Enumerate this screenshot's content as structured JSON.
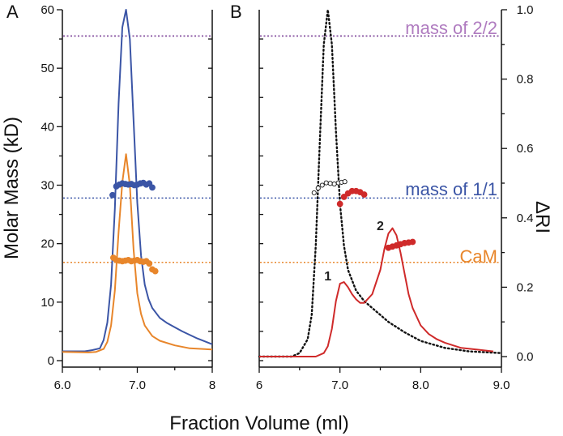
{
  "colors": {
    "blue": "#3b55a6",
    "orange": "#e8862b",
    "purple": "#7a3f96",
    "purple_text": "#b07cc0",
    "red": "#cf2a2a",
    "black": "#111111"
  },
  "figure": {
    "xlabel": "Fraction Volume (ml)"
  },
  "chart_data": [
    {
      "type": "line",
      "panel": "A",
      "panel_label": "A",
      "ylabel": "Molar Mass (kD)",
      "xlim": [
        6.0,
        8.0
      ],
      "ylim": [
        0,
        60
      ],
      "x_ticks": [
        6.0,
        6.5,
        7.0,
        7.5,
        8.0
      ],
      "x_tick_labels": [
        "6.0",
        "",
        "7.0",
        "",
        "8"
      ],
      "y_ticks": [
        0,
        5,
        10,
        15,
        20,
        25,
        30,
        35,
        40,
        45,
        50,
        55,
        60
      ],
      "y_tick_labels": [
        "0",
        "",
        "10",
        "",
        "20",
        "",
        "30",
        "",
        "40",
        "",
        "50",
        "",
        "60"
      ],
      "right_ticks": [
        0,
        5,
        10,
        15,
        20,
        25,
        30,
        35,
        40,
        45,
        50,
        55
      ],
      "reference_lines": [
        {
          "name": "mass of 2/2",
          "y": 55.5,
          "color": "purple"
        },
        {
          "name": "mass of 1/1",
          "y": 27.8,
          "color": "blue"
        },
        {
          "name": "CaM",
          "y": 16.8,
          "color": "orange"
        }
      ],
      "series": [
        {
          "name": "blue RI trace",
          "color": "blue",
          "x": [
            6.0,
            6.3,
            6.4,
            6.5,
            6.55,
            6.6,
            6.65,
            6.7,
            6.75,
            6.8,
            6.85,
            6.9,
            6.95,
            7.0,
            7.05,
            7.1,
            7.15,
            7.2,
            7.3,
            7.4,
            7.5,
            7.6,
            7.8,
            8.0
          ],
          "y": [
            1.6,
            1.6,
            1.8,
            2.1,
            3.5,
            6.5,
            13,
            26,
            44,
            57,
            60,
            55,
            41,
            27,
            18,
            13,
            10.5,
            9,
            7.3,
            6.4,
            5.7,
            5.0,
            3.8,
            2.8
          ]
        },
        {
          "name": "orange RI trace",
          "color": "orange",
          "x": [
            6.0,
            6.35,
            6.45,
            6.55,
            6.6,
            6.65,
            6.7,
            6.75,
            6.8,
            6.85,
            6.9,
            6.95,
            7.0,
            7.05,
            7.1,
            7.2,
            7.3,
            7.5,
            7.7,
            8.0
          ],
          "y": [
            1.5,
            1.4,
            1.5,
            2.0,
            3.2,
            6,
            12,
            22,
            30.5,
            35.3,
            30,
            19,
            11.5,
            8,
            6,
            4.2,
            3.4,
            2.6,
            2.1,
            1.9
          ]
        },
        {
          "name": "blue molar mass",
          "color": "blue",
          "kind": "scatter",
          "x": [
            6.67,
            6.72,
            6.76,
            6.8,
            6.84,
            6.88,
            6.92,
            6.96,
            7.0,
            7.04,
            7.08,
            7.12,
            7.16,
            7.2
          ],
          "y": [
            28.3,
            29.8,
            30.1,
            30.3,
            30.2,
            30.1,
            30.2,
            30.0,
            30.1,
            30.3,
            30.4,
            30.1,
            30.3,
            29.6
          ]
        },
        {
          "name": "orange molar mass",
          "color": "orange",
          "kind": "scatter",
          "x": [
            6.68,
            6.72,
            6.76,
            6.8,
            6.84,
            6.88,
            6.92,
            6.96,
            7.0,
            7.04,
            7.08,
            7.12,
            7.16,
            7.2,
            7.24
          ],
          "y": [
            17.6,
            17.2,
            17.1,
            17.0,
            17.1,
            17.2,
            17.0,
            17.1,
            17.2,
            17.0,
            16.9,
            17.0,
            16.6,
            15.6,
            15.3
          ]
        }
      ]
    },
    {
      "type": "line",
      "panel": "B",
      "panel_label": "B",
      "ylabel": "ΔRI",
      "xlim": [
        6.0,
        9.0
      ],
      "ylim": [
        0,
        1.0
      ],
      "left_ylim": [
        0,
        60
      ],
      "x_ticks": [
        6.0,
        6.5,
        7.0,
        7.5,
        8.0,
        8.5,
        9.0
      ],
      "x_tick_labels": [
        "6",
        "",
        "7.0",
        "",
        "8.0",
        "",
        "9.0"
      ],
      "y_ticks": [
        0.0,
        0.1,
        0.2,
        0.3,
        0.4,
        0.5,
        0.6,
        0.7,
        0.8,
        0.9,
        1.0
      ],
      "y_tick_labels": [
        "0.0",
        "",
        "0.2",
        "",
        "0.4",
        "",
        "0.6",
        "",
        "0.8",
        "",
        "1.0"
      ],
      "left_ticks": [
        0,
        5,
        10,
        15,
        20,
        25,
        30,
        35,
        40,
        45,
        50,
        55
      ],
      "reference_lines": [
        {
          "name": "mass of 2/2",
          "label": "mass of 2/2",
          "y": 55.5,
          "color": "purple",
          "label_color": "purple_text"
        },
        {
          "name": "mass of 1/1",
          "label": "mass of 1/1",
          "y": 27.8,
          "color": "blue",
          "label_color": "blue"
        },
        {
          "name": "CaM",
          "label": "CaM",
          "y": 16.8,
          "color": "orange",
          "label_color": "orange"
        }
      ],
      "peak_labels": [
        {
          "text": "1",
          "x": 6.85,
          "y": 0.22
        },
        {
          "text": "2",
          "x": 7.5,
          "y": 0.365
        }
      ],
      "series": [
        {
          "name": "black RI trace",
          "color": "black",
          "dashed": true,
          "x": [
            6.0,
            6.4,
            6.5,
            6.6,
            6.65,
            6.7,
            6.75,
            6.8,
            6.85,
            6.9,
            6.95,
            7.0,
            7.05,
            7.1,
            7.2,
            7.3,
            7.4,
            7.5,
            7.6,
            7.8,
            8.0,
            8.3,
            8.6,
            9.0
          ],
          "y": [
            0.0,
            0.0,
            0.01,
            0.05,
            0.12,
            0.32,
            0.62,
            0.9,
            1.0,
            0.9,
            0.65,
            0.44,
            0.32,
            0.25,
            0.19,
            0.16,
            0.14,
            0.12,
            0.1,
            0.07,
            0.045,
            0.025,
            0.015,
            0.01
          ]
        },
        {
          "name": "red RI trace",
          "color": "red",
          "x": [
            6.0,
            6.7,
            6.8,
            6.85,
            6.9,
            6.95,
            7.0,
            7.05,
            7.1,
            7.15,
            7.2,
            7.25,
            7.3,
            7.4,
            7.5,
            7.55,
            7.6,
            7.65,
            7.7,
            7.75,
            7.8,
            7.85,
            7.9,
            8.0,
            8.1,
            8.2,
            8.3,
            8.5,
            8.7,
            8.9
          ],
          "y": [
            0.0,
            0.0,
            0.01,
            0.03,
            0.08,
            0.16,
            0.21,
            0.215,
            0.2,
            0.18,
            0.165,
            0.155,
            0.155,
            0.18,
            0.25,
            0.31,
            0.355,
            0.37,
            0.35,
            0.3,
            0.24,
            0.18,
            0.14,
            0.09,
            0.065,
            0.05,
            0.04,
            0.025,
            0.02,
            0.015
          ]
        },
        {
          "name": "open-circle molar mass",
          "color": "black",
          "kind": "scatter",
          "open": true,
          "axis": "left",
          "x": [
            6.68,
            6.73,
            6.78,
            6.83,
            6.88,
            6.93,
            6.98,
            7.02,
            7.06
          ],
          "y": [
            28.7,
            29.5,
            30.0,
            30.4,
            30.3,
            30.2,
            30.4,
            30.5,
            30.6
          ]
        },
        {
          "name": "red molar mass peak 1",
          "color": "red",
          "kind": "scatter",
          "axis": "left",
          "x": [
            7.0,
            7.05,
            7.1,
            7.15,
            7.2,
            7.25,
            7.3
          ],
          "y": [
            26.8,
            28.0,
            28.6,
            29.0,
            29.0,
            28.8,
            28.4
          ]
        },
        {
          "name": "red molar mass peak 2",
          "color": "red",
          "kind": "scatter",
          "axis": "left",
          "x": [
            7.6,
            7.65,
            7.7,
            7.75,
            7.8,
            7.85,
            7.9
          ],
          "y": [
            19.3,
            19.5,
            19.7,
            19.9,
            20.1,
            20.2,
            20.3
          ]
        }
      ]
    }
  ]
}
